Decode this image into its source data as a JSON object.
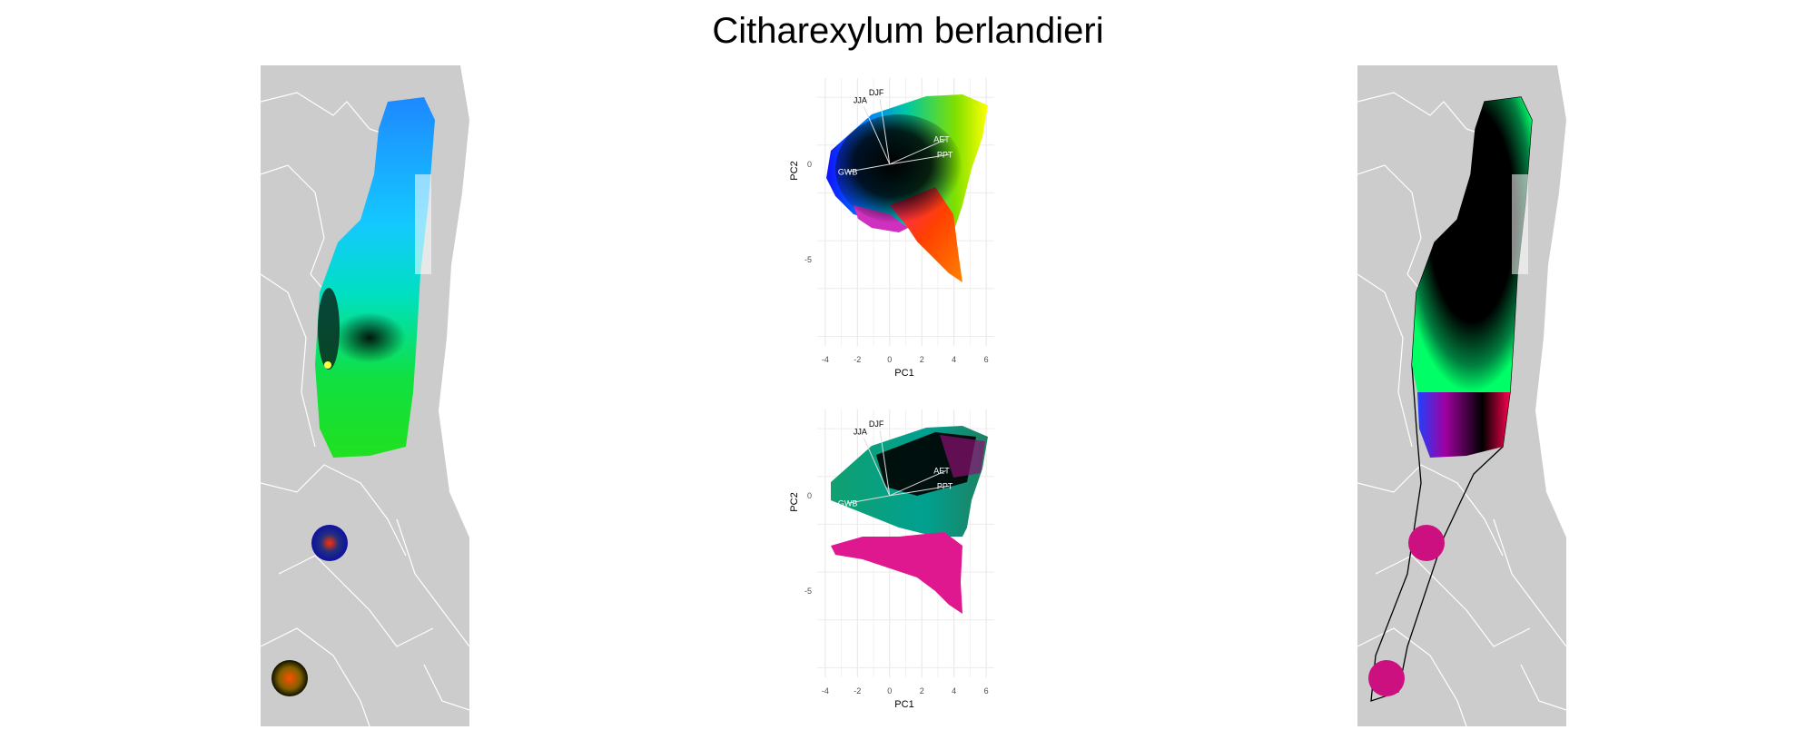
{
  "title": "Citharexylum berlandieri",
  "colors": {
    "land": "#cccccc",
    "border": "#ffffff",
    "outline": "#000000",
    "grid": "#ebebeb",
    "axis_text": "#4d4d4d"
  },
  "chart_data": [
    {
      "type": "map",
      "panel": "left",
      "description_colors": [
        "#1e90ff",
        "#00ffff",
        "#00ff00",
        "#000000",
        "#ffff00",
        "#0000ff",
        "#ff4500"
      ],
      "legend": "none"
    },
    {
      "type": "scatter",
      "panel": "top",
      "xlabel": "PC1",
      "ylabel": "PC2",
      "xlim": [
        -4.5,
        6.5
      ],
      "ylim": [
        -9.5,
        4.5
      ],
      "x_ticks": [
        -4,
        -2,
        0,
        2,
        4,
        6
      ],
      "y_ticks": [
        0,
        -5
      ],
      "grid": true,
      "vectors": [
        {
          "label": "DJF",
          "x": -0.6,
          "y": 3.4
        },
        {
          "label": "JJA",
          "x": -1.6,
          "y": 3.0
        },
        {
          "label": "AET",
          "x": 3.5,
          "y": 1.3
        },
        {
          "label": "PPT",
          "x": 3.7,
          "y": 0.5
        },
        {
          "label": "GWB",
          "x": -2.6,
          "y": -0.4
        }
      ]
    },
    {
      "type": "scatter",
      "panel": "bottom",
      "xlabel": "PC1",
      "ylabel": "PC2",
      "xlim": [
        -4.5,
        6.5
      ],
      "ylim": [
        -9.5,
        4.5
      ],
      "x_ticks": [
        -4,
        -2,
        0,
        2,
        4,
        6
      ],
      "y_ticks": [
        0,
        -5
      ],
      "grid": true,
      "vectors": [
        {
          "label": "DJF",
          "x": -0.6,
          "y": 3.4
        },
        {
          "label": "JJA",
          "x": -1.6,
          "y": 3.0
        },
        {
          "label": "AET",
          "x": 3.5,
          "y": 1.3
        },
        {
          "label": "PPT",
          "x": 3.7,
          "y": 0.5
        },
        {
          "label": "GWB",
          "x": -2.6,
          "y": -0.4
        }
      ]
    },
    {
      "type": "map",
      "panel": "right",
      "description_colors": [
        "#00ff66",
        "#000000",
        "#0033ff",
        "#ff0066",
        "#cc0077"
      ],
      "legend": "none"
    }
  ]
}
